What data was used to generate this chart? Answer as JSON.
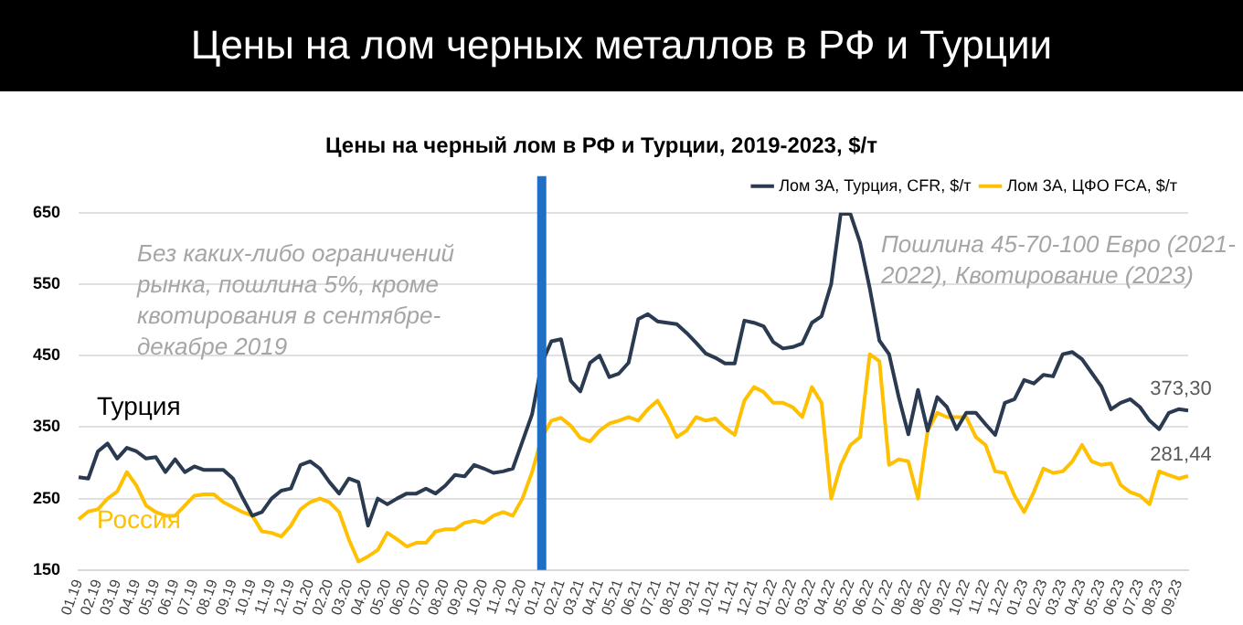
{
  "chart_data": {
    "type": "line",
    "title": "Цены на лом черных металлов в РФ и Турции",
    "subtitle": "Цены на черный лом в РФ и Турции, 2019-2023, $/т",
    "categories": [
      "01.19",
      null,
      "02.19",
      null,
      "03.19",
      null,
      "04.19",
      null,
      "05.19",
      null,
      "06.19",
      null,
      "07.19",
      null,
      "08.19",
      null,
      "09.19",
      null,
      "10.19",
      null,
      "11.19",
      null,
      "12.19",
      null,
      "01.20",
      null,
      "02.20",
      null,
      "03.20",
      null,
      "04.20",
      null,
      "05.20",
      null,
      "06.20",
      null,
      "07.20",
      null,
      "08.20",
      null,
      "09.20",
      null,
      "10.20",
      null,
      "11.20",
      null,
      "12.20",
      null,
      "01.21",
      null,
      "02.21",
      null,
      "03.21",
      null,
      "04.21",
      null,
      "05.21",
      null,
      "06.21",
      null,
      "07.21",
      null,
      "08.21",
      null,
      "09.21",
      null,
      "10.21",
      null,
      "11.21",
      null,
      "12.21",
      null,
      "01.22",
      null,
      "02.22",
      null,
      "03.22",
      null,
      "04.22",
      null,
      "05.22",
      null,
      "06.22",
      null,
      "07.22",
      null,
      "08.22",
      null,
      "08.22",
      null,
      "09.22",
      null,
      "10.22",
      null,
      "11.22",
      null,
      "12.22",
      null,
      "01.23",
      null,
      "02.23",
      null,
      "03.23",
      null,
      "04.23",
      null,
      "05.23",
      null,
      "06.23",
      null,
      "07.23",
      null,
      "08.23",
      null,
      "09.23",
      null
    ],
    "series": [
      {
        "name": "Лом 3А, Турция, CFR, $/т",
        "color": "#2a3a50",
        "values": [
          280,
          278,
          316,
          327,
          306,
          321,
          316,
          306,
          308,
          287,
          305,
          287,
          295,
          290,
          290,
          290,
          278,
          251,
          226,
          231,
          250,
          261,
          264,
          297,
          302,
          292,
          273,
          257,
          278,
          273,
          212,
          250,
          242,
          250,
          257,
          257,
          264,
          257,
          268,
          283,
          281,
          297,
          292,
          286,
          288,
          292,
          330,
          368,
          439,
          470,
          473,
          415,
          400,
          440,
          450,
          420,
          425,
          440,
          501,
          508,
          498,
          496,
          494,
          482,
          468,
          453,
          447,
          439,
          439,
          499,
          496,
          491,
          469,
          460,
          462,
          467,
          496,
          505,
          550,
          650,
          648,
          608,
          544,
          471,
          452,
          392,
          340,
          402,
          345,
          392,
          378,
          347,
          370,
          370,
          354,
          339,
          384,
          389,
          416,
          411,
          423,
          421,
          452,
          455,
          445,
          426,
          407,
          375,
          384,
          389,
          378,
          359,
          347,
          370,
          375,
          373.3
        ],
        "value_labels": [
          null,
          null,
          null,
          null,
          null,
          null,
          null,
          null,
          null,
          null,
          null,
          null,
          null,
          null,
          null,
          null,
          null,
          null,
          null,
          null,
          null,
          null,
          null,
          null,
          null,
          null,
          null,
          null,
          null,
          null,
          null,
          null,
          null,
          null,
          null,
          null,
          null,
          null,
          null,
          null,
          null,
          null,
          null,
          null,
          null,
          null,
          null,
          null,
          null,
          null,
          null,
          null,
          null,
          null,
          null,
          null,
          null,
          null,
          null,
          null,
          null,
          null,
          null,
          null,
          null,
          null,
          null,
          null,
          null,
          null,
          null,
          null,
          null,
          null,
          null,
          null,
          null,
          null,
          null,
          null,
          null,
          null,
          null,
          null,
          null,
          null,
          null,
          null,
          null,
          null,
          null,
          null,
          null,
          null,
          null,
          null,
          null,
          null,
          null,
          null,
          null,
          null,
          null,
          null,
          null,
          null,
          null,
          null,
          null,
          null,
          null,
          null,
          null,
          null,
          null,
          "373,30"
        ]
      },
      {
        "name": "Лом 3А, ЦФО FCA, $/т",
        "color": "#ffc000",
        "values": [
          221,
          232,
          235,
          250,
          260,
          287,
          268,
          240,
          231,
          226,
          226,
          240,
          254,
          256,
          256,
          245,
          238,
          231,
          226,
          204,
          202,
          197,
          212,
          235,
          245,
          250,
          245,
          231,
          193,
          162,
          169,
          178,
          202,
          193,
          183,
          188,
          188,
          204,
          207,
          207,
          216,
          219,
          216,
          226,
          231,
          226,
          250,
          287,
          335,
          359,
          363,
          352,
          335,
          330,
          345,
          355,
          359,
          364,
          359,
          375,
          387,
          364,
          336,
          345,
          364,
          359,
          362,
          349,
          339,
          387,
          406,
          399,
          384,
          384,
          378,
          364,
          406,
          384,
          250,
          297,
          325,
          336,
          452,
          442,
          297,
          305,
          302,
          250,
          345,
          370,
          364,
          364,
          364,
          336,
          325,
          288,
          286,
          254,
          231,
          259,
          292,
          286,
          288,
          302,
          325,
          302,
          297,
          299,
          269,
          259,
          254,
          242,
          288,
          283,
          278,
          281.44
        ],
        "value_labels": [
          null,
          null,
          null,
          null,
          null,
          null,
          null,
          null,
          null,
          null,
          null,
          null,
          null,
          null,
          null,
          null,
          null,
          null,
          null,
          null,
          null,
          null,
          null,
          null,
          null,
          null,
          null,
          null,
          null,
          null,
          null,
          null,
          null,
          null,
          null,
          null,
          null,
          null,
          null,
          null,
          null,
          null,
          null,
          null,
          null,
          null,
          null,
          null,
          null,
          null,
          null,
          null,
          null,
          null,
          null,
          null,
          null,
          null,
          null,
          null,
          null,
          null,
          null,
          null,
          null,
          null,
          null,
          null,
          null,
          null,
          null,
          null,
          null,
          null,
          null,
          null,
          null,
          null,
          null,
          null,
          null,
          null,
          null,
          null,
          null,
          null,
          null,
          null,
          null,
          null,
          null,
          null,
          null,
          null,
          null,
          null,
          null,
          null,
          null,
          null,
          null,
          null,
          null,
          null,
          null,
          null,
          null,
          null,
          null,
          null,
          null,
          null,
          null,
          null,
          null,
          "281,44"
        ]
      }
    ],
    "ylim": [
      150,
      650
    ],
    "yticks": [
      150,
      250,
      350,
      450,
      550,
      650
    ],
    "grid": "y",
    "legend": "top right",
    "marker": "none",
    "line_style": "solid",
    "ref_lines": [
      {
        "axis": "x",
        "value": "01.21",
        "color": "#1f6fc6"
      }
    ],
    "annotations": [
      "Турция",
      "Россия",
      "Без каких-либо ограничений рынка, пошлина 5%, кроме квотирования в сентябре-декабре 2019",
      "Пошлина 45-70-100 Евро (2021-2022), Квотирование (2023)"
    ]
  }
}
